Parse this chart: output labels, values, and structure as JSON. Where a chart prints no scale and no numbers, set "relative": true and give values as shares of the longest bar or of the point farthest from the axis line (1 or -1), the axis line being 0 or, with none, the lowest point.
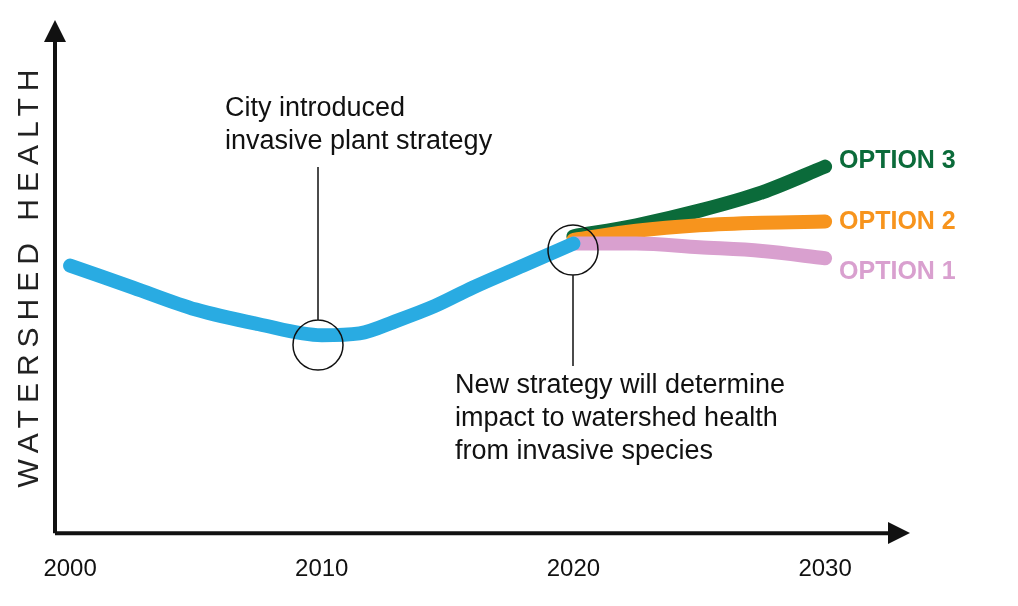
{
  "chart_data": {
    "type": "line",
    "relative": true,
    "ylabel": "WATERSHED HEALTH",
    "xlim": [
      1999.4,
      2032.5
    ],
    "xticks": [
      2000,
      2010,
      2020,
      2030
    ],
    "grid": false,
    "legend": false,
    "marker": "none",
    "line_style": "solid",
    "series": [
      {
        "color": "#29abe2",
        "x": [
          2000,
          2002.5,
          2005,
          2007.5,
          2010,
          2011.5,
          2013,
          2014.5,
          2016,
          2018,
          2020
        ],
        "values": [
          0.73,
          0.67,
          0.61,
          0.57,
          0.54,
          0.545,
          0.58,
          0.62,
          0.67,
          0.73,
          0.79
        ]
      },
      {
        "name": "OPTION 1",
        "color": "#d9a0cf",
        "x": [
          2020,
          2022.5,
          2025,
          2027.5,
          2030
        ],
        "values": [
          0.79,
          0.79,
          0.78,
          0.77,
          0.75
        ]
      },
      {
        "name": "OPTION 2",
        "color": "#f7941d",
        "x": [
          2020,
          2022.5,
          2025,
          2027.5,
          2030
        ],
        "values": [
          0.8,
          0.825,
          0.84,
          0.847,
          0.85
        ]
      },
      {
        "name": "OPTION 3",
        "color": "#0b6b3a",
        "x": [
          2020,
          2022.5,
          2025,
          2027.5,
          2030
        ],
        "values": [
          0.81,
          0.84,
          0.88,
          0.93,
          1
        ]
      }
    ],
    "annotations": [
      "City introduced invasive plant strategy",
      "New strategy will determine impact to watershed health from invasive species"
    ]
  }
}
